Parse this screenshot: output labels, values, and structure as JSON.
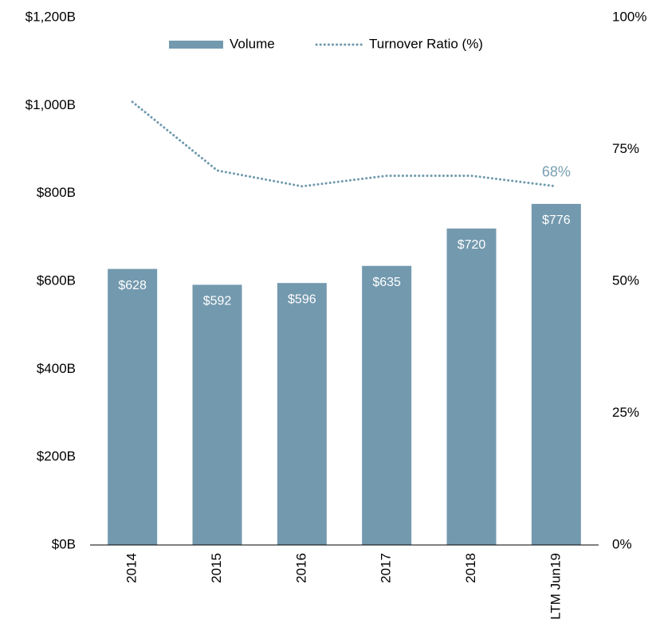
{
  "chart_data": {
    "type": "bar-line",
    "categories": [
      "2014",
      "2015",
      "2016",
      "2017",
      "2018",
      "LTM Jun19"
    ],
    "series": [
      {
        "name": "Volume",
        "type": "bar",
        "color": "#7399ae",
        "values": [
          628,
          592,
          596,
          635,
          720,
          776
        ],
        "value_labels": [
          "$628",
          "$592",
          "$596",
          "$635",
          "$720",
          "$776"
        ]
      },
      {
        "name": "Turnover Ratio (%)",
        "type": "line",
        "axis": "y2",
        "color": "#6f99ad",
        "values": [
          84,
          71,
          68,
          70,
          70,
          68
        ],
        "value_labels": [
          null,
          null,
          null,
          null,
          null,
          "68%"
        ]
      }
    ],
    "ylim": [
      0,
      1200
    ],
    "yticks": [
      {
        "value": 0,
        "label": "$0B"
      },
      {
        "value": 200,
        "label": "$200B"
      },
      {
        "value": 400,
        "label": "$400B"
      },
      {
        "value": 600,
        "label": "$600B"
      },
      {
        "value": 800,
        "label": "$800B"
      },
      {
        "value": 1000,
        "label": "$1,000B"
      },
      {
        "value": 1200,
        "label": "$1,200B"
      }
    ],
    "y2lim": [
      0,
      100
    ],
    "y2ticks": [
      {
        "value": 0,
        "label": "0%"
      },
      {
        "value": 25,
        "label": "25%"
      },
      {
        "value": 50,
        "label": "50%"
      },
      {
        "value": 75,
        "label": "75%"
      },
      {
        "value": 100,
        "label": "100%"
      }
    ],
    "legend": "top"
  }
}
